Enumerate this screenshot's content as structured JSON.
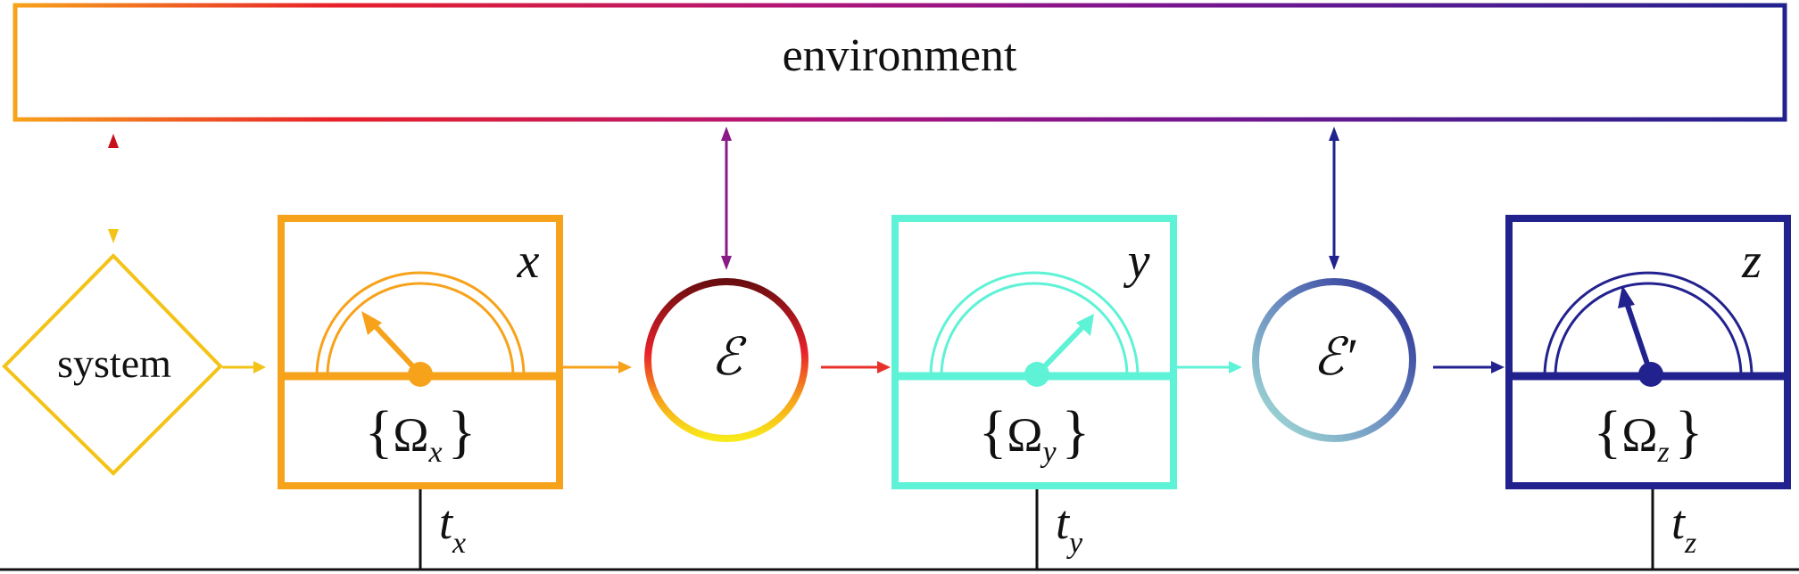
{
  "environment": {
    "label": "environment"
  },
  "system": {
    "label": "system"
  },
  "detectors": [
    {
      "id": "x",
      "label": "x",
      "set_brace_open": "{",
      "set_symbol": "Ω",
      "set_sub": "x",
      "set_brace_close": "}",
      "time_main": "t",
      "time_sub": "x",
      "color": "#f7a21b"
    },
    {
      "id": "y",
      "label": "y",
      "set_brace_open": "{",
      "set_symbol": "Ω",
      "set_sub": "y",
      "set_brace_close": "}",
      "time_main": "t",
      "time_sub": "y",
      "color": "#5ef2d6"
    },
    {
      "id": "z",
      "label": "z",
      "set_brace_open": "{",
      "set_symbol": "Ω",
      "set_sub": "z",
      "set_brace_close": "}",
      "time_main": "t",
      "time_sub": "z",
      "color": "#22228f"
    }
  ],
  "channels": [
    {
      "id": "E",
      "label": "ℰ"
    },
    {
      "id": "E-prime",
      "label": "ℰ′"
    }
  ],
  "colors": {
    "system": "#f3c317",
    "orange": "#f7a21b",
    "cyan": "#5ef2d6",
    "navy": "#22228f",
    "purple": "#8a1a85",
    "red": "#e8312a"
  }
}
